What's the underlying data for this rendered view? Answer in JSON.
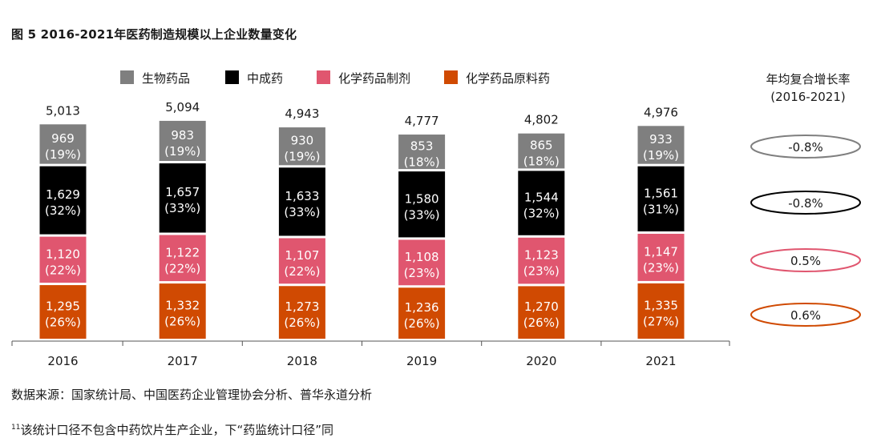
{
  "title": "图 5 2016-2021年医药制造规模以上企业数量变化",
  "cagr_header": {
    "line1": "年均复合增长率",
    "line2": "(2016-2021)"
  },
  "source": "数据来源：国家统计局、中国医药企业管理协会分析、普华永道分析",
  "footnote": {
    "marker": "11",
    "text": "该统计口径不包含中药饮片生产企业，下“药监统计口径”同"
  },
  "chart_data": {
    "type": "bar",
    "stacked": true,
    "categories": [
      "2016",
      "2017",
      "2018",
      "2019",
      "2020",
      "2021"
    ],
    "totals": [
      5013,
      5094,
      4943,
      4777,
      4802,
      4976
    ],
    "total_labels": [
      "5,013",
      "5,094",
      "4,943",
      "4,777",
      "4,802",
      "4,976"
    ],
    "series": [
      {
        "name": "化学药品原料药",
        "color": "#d04a02",
        "values": [
          1295,
          1332,
          1273,
          1236,
          1270,
          1335
        ],
        "value_labels": [
          "1,295",
          "1,332",
          "1,273",
          "1,236",
          "1,270",
          "1,335"
        ],
        "share_labels": [
          "(26%)",
          "(26%)",
          "(26%)",
          "(26%)",
          "(26%)",
          "(27%)"
        ],
        "cagr": "0.6%"
      },
      {
        "name": "化学药品制剂",
        "color": "#e0566f",
        "values": [
          1120,
          1122,
          1107,
          1108,
          1123,
          1147
        ],
        "value_labels": [
          "1,120",
          "1,122",
          "1,107",
          "1,108",
          "1,123",
          "1,147"
        ],
        "share_labels": [
          "(22%)",
          "(22%)",
          "(22%)",
          "(23%)",
          "(23%)",
          "(23%)"
        ],
        "cagr": "0.5%"
      },
      {
        "name": "中成药",
        "color": "#000000",
        "values": [
          1629,
          1657,
          1633,
          1580,
          1544,
          1561
        ],
        "value_labels": [
          "1,629",
          "1,657",
          "1,633",
          "1,580",
          "1,544",
          "1,561"
        ],
        "share_labels": [
          "(32%)",
          "(33%)",
          "(33%)",
          "(33%)",
          "(32%)",
          "(31%)"
        ],
        "cagr": "-0.8%"
      },
      {
        "name": "生物药品",
        "color": "#7f7f7f",
        "values": [
          969,
          983,
          930,
          853,
          865,
          933
        ],
        "value_labels": [
          "969",
          "983",
          "930",
          "853",
          "865",
          "933"
        ],
        "share_labels": [
          "(19%)",
          "(19%)",
          "(19%)",
          "(18%)",
          "(18%)",
          "(19%)"
        ],
        "cagr": "-0.8%"
      }
    ],
    "legend_order": [
      "生物药品",
      "中成药",
      "化学药品制剂",
      "化学药品原料药"
    ],
    "legend_position": "top",
    "grid": false
  }
}
